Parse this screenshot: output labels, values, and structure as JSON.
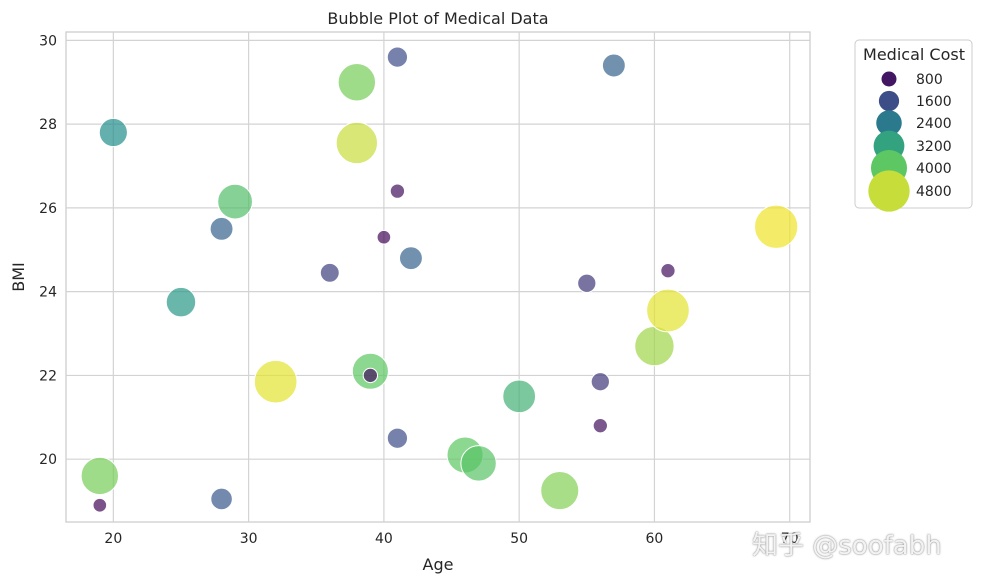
{
  "chart_data": {
    "type": "scatter",
    "title": "Bubble Plot of Medical Data",
    "xlabel": "Age",
    "ylabel": "BMI",
    "xlim": [
      16.5,
      71.5
    ],
    "ylim": [
      18.5,
      30.2
    ],
    "xticks": [
      20,
      30,
      40,
      50,
      60,
      70
    ],
    "yticks": [
      20,
      22,
      24,
      26,
      28,
      30
    ],
    "grid": true,
    "size_variable": "Medical Cost",
    "legend": {
      "title": "Medical Cost",
      "placement": "outside-top-right",
      "entries": [
        {
          "label": "800",
          "value": 800
        },
        {
          "label": "1600",
          "value": 1600
        },
        {
          "label": "2400",
          "value": 2400
        },
        {
          "label": "3200",
          "value": 3200
        },
        {
          "label": "4000",
          "value": 4000
        },
        {
          "label": "4800",
          "value": 4800
        }
      ]
    },
    "color_range": [
      500,
      5200
    ],
    "points": [
      {
        "age": 19,
        "bmi": 18.9,
        "cost": 600
      },
      {
        "age": 19,
        "bmi": 19.6,
        "cost": 4200
      },
      {
        "age": 20,
        "bmi": 27.8,
        "cost": 2800
      },
      {
        "age": 25,
        "bmi": 23.75,
        "cost": 3000
      },
      {
        "age": 28,
        "bmi": 25.5,
        "cost": 2000
      },
      {
        "age": 28,
        "bmi": 19.05,
        "cost": 1800
      },
      {
        "age": 29,
        "bmi": 26.15,
        "cost": 3800
      },
      {
        "age": 32,
        "bmi": 21.85,
        "cost": 5000
      },
      {
        "age": 36,
        "bmi": 24.45,
        "cost": 1400
      },
      {
        "age": 38,
        "bmi": 29.0,
        "cost": 4200
      },
      {
        "age": 38,
        "bmi": 27.55,
        "cost": 4800
      },
      {
        "age": 39,
        "bmi": 22.1,
        "cost": 4000
      },
      {
        "age": 39,
        "bmi": 22.0,
        "cost": 700
      },
      {
        "age": 40,
        "bmi": 25.3,
        "cost": 600
      },
      {
        "age": 41,
        "bmi": 29.6,
        "cost": 1600
      },
      {
        "age": 41,
        "bmi": 26.4,
        "cost": 700
      },
      {
        "age": 41,
        "bmi": 20.5,
        "cost": 1600
      },
      {
        "age": 42,
        "bmi": 24.8,
        "cost": 2000
      },
      {
        "age": 46,
        "bmi": 20.1,
        "cost": 4000
      },
      {
        "age": 47,
        "bmi": 19.9,
        "cost": 3900
      },
      {
        "age": 50,
        "bmi": 21.5,
        "cost": 3500
      },
      {
        "age": 53,
        "bmi": 19.25,
        "cost": 4300
      },
      {
        "age": 55,
        "bmi": 24.2,
        "cost": 1300
      },
      {
        "age": 56,
        "bmi": 21.85,
        "cost": 1300
      },
      {
        "age": 56,
        "bmi": 20.8,
        "cost": 700
      },
      {
        "age": 57,
        "bmi": 29.4,
        "cost": 2000
      },
      {
        "age": 60,
        "bmi": 22.7,
        "cost": 4500
      },
      {
        "age": 61,
        "bmi": 24.5,
        "cost": 700
      },
      {
        "age": 61,
        "bmi": 23.55,
        "cost": 5000
      },
      {
        "age": 69,
        "bmi": 25.55,
        "cost": 5100
      }
    ]
  },
  "watermark": "知乎 @soofabh"
}
